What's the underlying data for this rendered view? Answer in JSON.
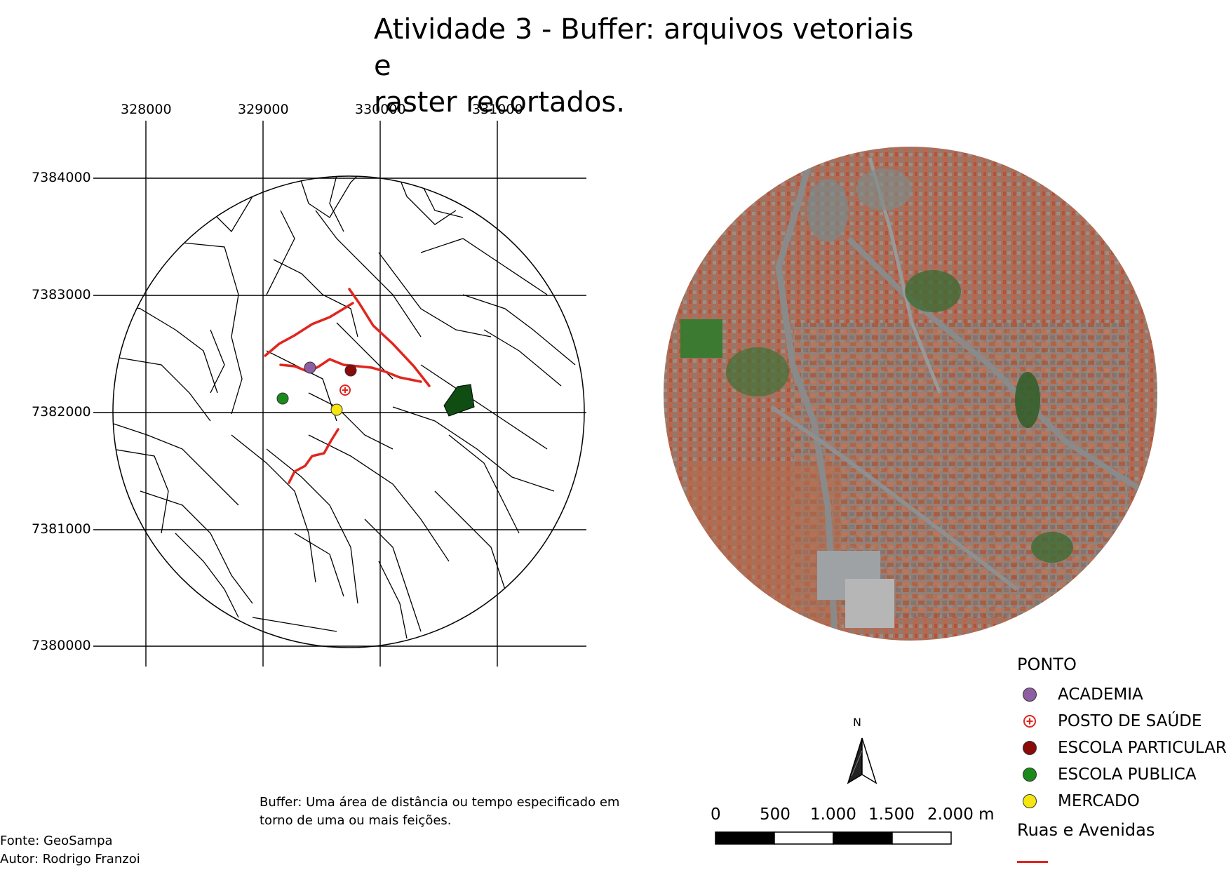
{
  "title": {
    "line1": "Atividade 3 - Buffer: arquivos vetoriais e",
    "line2": "raster recortados."
  },
  "grid": {
    "x_labels": [
      "328000",
      "329000",
      "330000",
      "331000"
    ],
    "y_labels": [
      "7384000",
      "7383000",
      "7382000",
      "7381000",
      "7380000"
    ]
  },
  "legend": {
    "heading": "PONTO",
    "items": [
      {
        "label": "ACADEMIA",
        "color": "#8e5ea2"
      },
      {
        "label": "POSTO DE SAÚDE",
        "color": "#e0261f",
        "icon": "plus-circle-icon"
      },
      {
        "label": "ESCOLA PARTICULAR",
        "color": "#8b0a0a"
      },
      {
        "label": "ESCOLA PUBLICA",
        "color": "#1b8a1b"
      },
      {
        "label": "MERCADO",
        "color": "#f5e60f"
      }
    ],
    "lines_heading": "Ruas e Avenidas",
    "line_color": "#e0261f"
  },
  "scalebar": {
    "labels": [
      "0",
      "500",
      "1.000",
      "1.500",
      "2.000 m"
    ]
  },
  "north_arrow": {
    "label": "N"
  },
  "caption": {
    "line1": "Buffer: Uma área de distância ou tempo especificado em",
    "line2": "torno de uma ou mais feições."
  },
  "credits": {
    "source": "Fonte: GeoSampa",
    "author": "Autor: Rodrigo Franzoi"
  },
  "colors": {
    "street_red": "#e0261f",
    "park_green": "#0f4d12"
  }
}
